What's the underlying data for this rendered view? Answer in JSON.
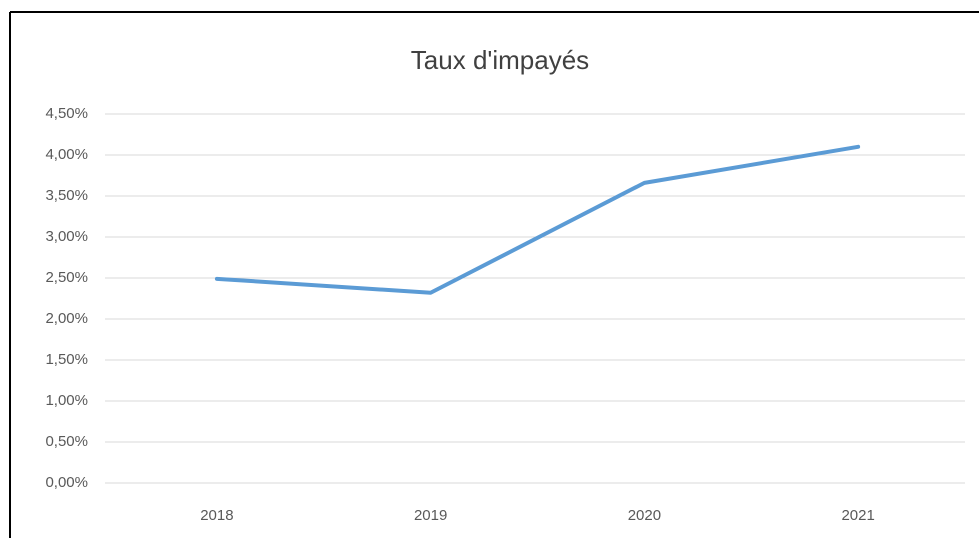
{
  "chart_data": {
    "type": "line",
    "title": "Taux d'impayés",
    "categories": [
      "2018",
      "2019",
      "2020",
      "2021"
    ],
    "series": [
      {
        "name": "Taux d'impayés",
        "color": "#5b9bd5",
        "values": [
          2.49,
          2.32,
          3.66,
          4.1
        ]
      }
    ],
    "ylim": [
      0,
      4.5
    ],
    "yticks": [
      {
        "value": 0,
        "label": "0,00%"
      },
      {
        "value": 0.5,
        "label": "0,50%"
      },
      {
        "value": 1,
        "label": "1,00%"
      },
      {
        "value": 1.5,
        "label": "1,50%"
      },
      {
        "value": 2,
        "label": "2,00%"
      },
      {
        "value": 2.5,
        "label": "2,50%"
      },
      {
        "value": 3,
        "label": "3,00%"
      },
      {
        "value": 3.5,
        "label": "3,50%"
      },
      {
        "value": 4,
        "label": "4,00%"
      },
      {
        "value": 4.5,
        "label": "4,50%"
      }
    ],
    "grid": true
  }
}
